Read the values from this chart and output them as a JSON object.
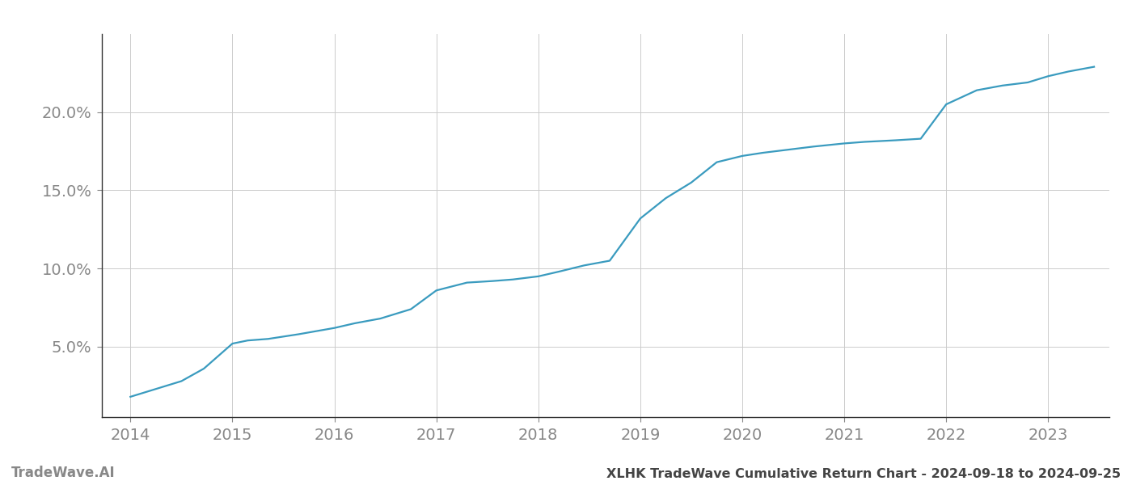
{
  "title": "XLHK TradeWave Cumulative Return Chart - 2024-09-18 to 2024-09-25",
  "watermark": "TradeWave.AI",
  "line_color": "#3a9bbf",
  "background_color": "#ffffff",
  "grid_color": "#cccccc",
  "x_values": [
    2014.0,
    2014.2,
    2014.5,
    2014.72,
    2015.0,
    2015.15,
    2015.35,
    2015.65,
    2016.0,
    2016.2,
    2016.45,
    2016.75,
    2017.0,
    2017.3,
    2017.55,
    2017.75,
    2018.0,
    2018.2,
    2018.45,
    2018.7,
    2019.0,
    2019.25,
    2019.5,
    2019.75,
    2020.0,
    2020.2,
    2020.45,
    2020.7,
    2021.0,
    2021.2,
    2021.5,
    2021.75,
    2022.0,
    2022.3,
    2022.55,
    2022.8,
    2023.0,
    2023.2,
    2023.45
  ],
  "y_values": [
    1.8,
    2.2,
    2.8,
    3.6,
    5.2,
    5.4,
    5.5,
    5.8,
    6.2,
    6.5,
    6.8,
    7.4,
    8.6,
    9.1,
    9.2,
    9.3,
    9.5,
    9.8,
    10.2,
    10.5,
    13.2,
    14.5,
    15.5,
    16.8,
    17.2,
    17.4,
    17.6,
    17.8,
    18.0,
    18.1,
    18.2,
    18.3,
    20.5,
    21.4,
    21.7,
    21.9,
    22.3,
    22.6,
    22.9
  ],
  "xlim": [
    2013.72,
    2023.6
  ],
  "ylim": [
    0.5,
    25.0
  ],
  "yticks": [
    5.0,
    10.0,
    15.0,
    20.0
  ],
  "xticks": [
    2014,
    2015,
    2016,
    2017,
    2018,
    2019,
    2020,
    2021,
    2022,
    2023
  ],
  "tick_color": "#888888",
  "tick_fontsize": 14,
  "title_fontsize": 11.5,
  "watermark_fontsize": 12,
  "line_width": 1.6
}
